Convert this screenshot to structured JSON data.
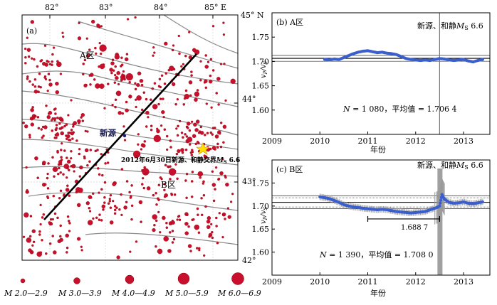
{
  "colors": {
    "quake": "#c8102e",
    "quake_stroke": "#8b0000",
    "series": "#3a5fcd",
    "fit": "#d02020",
    "fault": "#8a8a8a",
    "event_line": "#777777"
  },
  "map": {
    "panel_label": "(a)",
    "lon_ticks": [
      "82°",
      "83°",
      "84°",
      "85° E"
    ],
    "lat_ticks": [
      "45° N",
      "44°",
      "43°",
      "42°"
    ],
    "region_a": "A区",
    "region_b": "B区",
    "xinyuan_label": "新源",
    "event_label": "2012年6月30日新源、和静交界",
    "event_mag_symbol": "M",
    "event_mag_sub": "S",
    "event_mag_value": " 6.6"
  },
  "legend": [
    {
      "label": "M 2.0—2.9",
      "radius": 3
    },
    {
      "label": "M 3.0—3.9",
      "radius": 4.5
    },
    {
      "label": "M 4.0—4.9",
      "radius": 6
    },
    {
      "label": "M 5.0—5.9",
      "radius": 8
    },
    {
      "label": "M 6.0—6.9",
      "radius": 8.5
    }
  ],
  "chart_data": [
    {
      "type": "line",
      "panel_label": "(b) A区",
      "xlabel": "年份",
      "ylabel_main": "v",
      "ylabel_sub1": "P",
      "ylabel_mid": "/v",
      "ylabel_sub2": "S",
      "xlim": [
        2009,
        2013.55
      ],
      "ylim": [
        1.55,
        1.8
      ],
      "xticks": [
        2009,
        2010,
        2011,
        2012,
        2013
      ],
      "yticks": [
        1.6,
        1.65,
        1.7,
        1.75
      ],
      "event_x": 2012.5,
      "event_label_text": "新源、和静",
      "event_label_m": "M",
      "event_label_sub": "S",
      "event_label_val": " 6.6",
      "mean": 1.7064,
      "band": [
        1.7004,
        1.7124
      ],
      "stats_n_label": "N",
      "stats_text": " = 1 080，平均值 = 1.706 4",
      "series": [
        {
          "name": "vP/vS",
          "x": [
            2010.1,
            2010.2,
            2010.3,
            2010.4,
            2010.5,
            2010.6,
            2010.7,
            2010.8,
            2010.9,
            2011.0,
            2011.1,
            2011.2,
            2011.3,
            2011.4,
            2011.5,
            2011.6,
            2011.7,
            2011.8,
            2011.9,
            2012.0,
            2012.1,
            2012.2,
            2012.3,
            2012.4,
            2012.5,
            2012.6,
            2012.7,
            2012.8,
            2012.9,
            2013.0,
            2013.1,
            2013.2,
            2013.3,
            2013.4
          ],
          "y": [
            1.704,
            1.703,
            1.705,
            1.704,
            1.708,
            1.712,
            1.716,
            1.719,
            1.721,
            1.722,
            1.72,
            1.718,
            1.719,
            1.717,
            1.716,
            1.714,
            1.71,
            1.706,
            1.704,
            1.703,
            1.702,
            1.703,
            1.702,
            1.704,
            1.706,
            1.705,
            1.703,
            1.702,
            1.703,
            1.704,
            1.701,
            1.699,
            1.702,
            1.704
          ]
        }
      ]
    },
    {
      "type": "line",
      "panel_label": "(c) B区",
      "xlabel": "年份",
      "ylabel_main": "v",
      "ylabel_sub1": "P",
      "ylabel_mid": "/v",
      "ylabel_sub2": "S",
      "xlim": [
        2009,
        2013.55
      ],
      "ylim": [
        1.55,
        1.8
      ],
      "xticks": [
        2009,
        2010,
        2011,
        2012,
        2013
      ],
      "yticks": [
        1.6,
        1.65,
        1.7,
        1.75
      ],
      "event_x": 2012.5,
      "event_label_text": "新源、和静",
      "event_label_m": "M",
      "event_label_sub": "S",
      "event_label_val": " 6.6",
      "mean": 1.708,
      "band": [
        1.694,
        1.722
      ],
      "low_value_label": "1.688 7",
      "low_value_range": [
        2011.0,
        2012.5
      ],
      "low_value_y": 1.672,
      "stats_n_label": "N",
      "stats_text": " = 1 390，平均值 = 1.708 0",
      "series": [
        {
          "name": "vP/vS",
          "x": [
            2010.0,
            2010.1,
            2010.2,
            2010.3,
            2010.4,
            2010.5,
            2010.6,
            2010.7,
            2010.8,
            2010.9,
            2011.0,
            2011.1,
            2011.2,
            2011.3,
            2011.4,
            2011.5,
            2011.6,
            2011.7,
            2011.8,
            2011.9,
            2012.0,
            2012.1,
            2012.2,
            2012.3,
            2012.4,
            2012.5,
            2012.55,
            2012.6,
            2012.7,
            2012.8,
            2012.9,
            2013.0,
            2013.1,
            2013.2,
            2013.3,
            2013.4
          ],
          "y": [
            1.72,
            1.718,
            1.716,
            1.712,
            1.708,
            1.703,
            1.7,
            1.698,
            1.697,
            1.695,
            1.694,
            1.693,
            1.692,
            1.693,
            1.692,
            1.69,
            1.688,
            1.687,
            1.686,
            1.685,
            1.686,
            1.687,
            1.688,
            1.692,
            1.695,
            1.7,
            1.725,
            1.715,
            1.708,
            1.706,
            1.707,
            1.709,
            1.706,
            1.705,
            1.707,
            1.709
          ]
        }
      ]
    }
  ]
}
